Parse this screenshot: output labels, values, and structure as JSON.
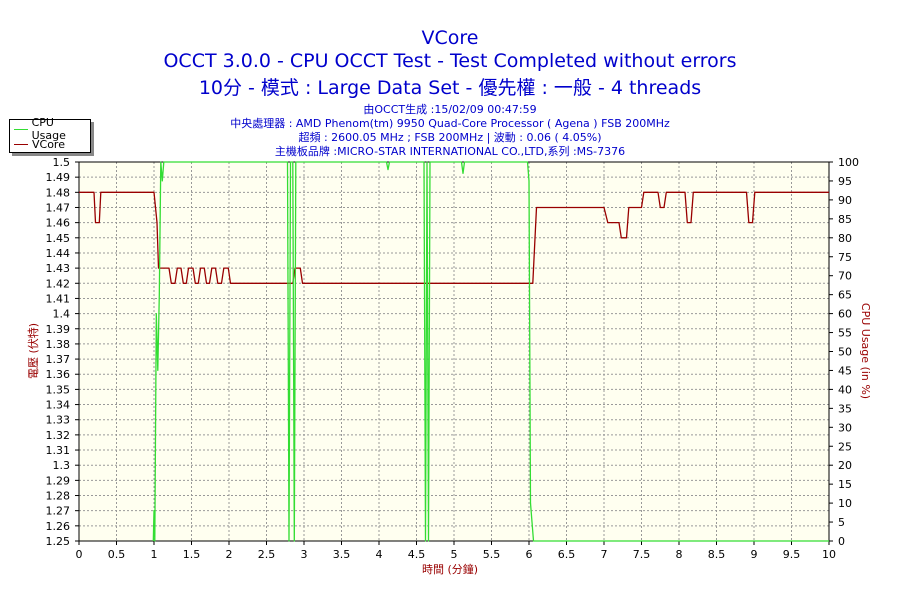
{
  "title_lines": [
    "VCore",
    "OCCT 3.0.0 - CPU OCCT Test - Test Completed without errors",
    "10分 - 模式 : Large Data Set - 優先權 : 一般 - 4 threads"
  ],
  "info_lines": [
    "由OCCT生成 :15/02/09 00:47:59",
    "中央處理器 : AMD Phenom(tm) 9950 Quad-Core Processor ( Agena ) FSB 200MHz",
    "超頻 : 2600.05 MHz ; FSB 200MHz | 波動 : 0.06 ( 4.05%)",
    "主機板品牌 :MICRO-STAR INTERNATIONAL CO.,LTD,系列 :MS-7376"
  ],
  "legend": [
    {
      "label": "CPU Usage",
      "color": "#33dd33"
    },
    {
      "label": "VCore",
      "color": "#990000"
    }
  ],
  "chart_data": {
    "type": "line",
    "xlabel": "時間 (分鐘)",
    "ylabel_left": "電壓 (伏特)",
    "ylabel_right": "CPU Usage (in %)",
    "xlim": [
      0,
      10
    ],
    "ylim_left": [
      1.25,
      1.5
    ],
    "ylim_right": [
      0,
      100
    ],
    "x_ticks": [
      "0",
      "0.5",
      "1",
      "1.5",
      "2",
      "2.5",
      "3",
      "3.5",
      "4",
      "4.5",
      "5",
      "5.5",
      "6",
      "6.5",
      "7",
      "7.5",
      "8",
      "8.5",
      "9",
      "9.5",
      "10"
    ],
    "y_left_ticks": [
      "1.25",
      "1.26",
      "1.27",
      "1.28",
      "1.29",
      "1.3",
      "1.31",
      "1.32",
      "1.33",
      "1.34",
      "1.35",
      "1.36",
      "1.37",
      "1.38",
      "1.39",
      "1.4",
      "1.41",
      "1.42",
      "1.43",
      "1.44",
      "1.45",
      "1.46",
      "1.47",
      "1.48",
      "1.49",
      "1.5"
    ],
    "y_right_ticks": [
      "0",
      "5",
      "10",
      "15",
      "20",
      "25",
      "30",
      "35",
      "40",
      "45",
      "50",
      "55",
      "60",
      "65",
      "70",
      "75",
      "80",
      "85",
      "90",
      "95",
      "100"
    ],
    "grid": true,
    "background": "#fffff0",
    "series": [
      {
        "name": "VCore",
        "axis": "left",
        "color": "#990000",
        "points": [
          [
            0,
            1.48
          ],
          [
            0.2,
            1.48
          ],
          [
            0.22,
            1.46
          ],
          [
            0.27,
            1.46
          ],
          [
            0.29,
            1.48
          ],
          [
            1.0,
            1.48
          ],
          [
            1.04,
            1.46
          ],
          [
            1.06,
            1.43
          ],
          [
            1.2,
            1.43
          ],
          [
            1.23,
            1.42
          ],
          [
            1.28,
            1.42
          ],
          [
            1.31,
            1.43
          ],
          [
            1.36,
            1.43
          ],
          [
            1.39,
            1.42
          ],
          [
            1.43,
            1.42
          ],
          [
            1.46,
            1.43
          ],
          [
            1.52,
            1.43
          ],
          [
            1.55,
            1.42
          ],
          [
            1.59,
            1.42
          ],
          [
            1.62,
            1.43
          ],
          [
            1.67,
            1.43
          ],
          [
            1.7,
            1.42
          ],
          [
            1.74,
            1.42
          ],
          [
            1.77,
            1.43
          ],
          [
            1.82,
            1.43
          ],
          [
            1.85,
            1.42
          ],
          [
            1.9,
            1.42
          ],
          [
            1.93,
            1.43
          ],
          [
            1.99,
            1.43
          ],
          [
            2.02,
            1.42
          ],
          [
            2.8,
            1.42
          ],
          [
            2.85,
            1.42
          ],
          [
            2.88,
            1.43
          ],
          [
            2.95,
            1.43
          ],
          [
            2.98,
            1.42
          ],
          [
            6.0,
            1.42
          ],
          [
            6.05,
            1.42
          ],
          [
            6.1,
            1.47
          ],
          [
            7.0,
            1.47
          ],
          [
            7.05,
            1.46
          ],
          [
            7.2,
            1.46
          ],
          [
            7.23,
            1.45
          ],
          [
            7.3,
            1.45
          ],
          [
            7.33,
            1.47
          ],
          [
            7.5,
            1.47
          ],
          [
            7.53,
            1.48
          ],
          [
            7.72,
            1.48
          ],
          [
            7.75,
            1.47
          ],
          [
            7.8,
            1.47
          ],
          [
            7.83,
            1.48
          ],
          [
            8.08,
            1.48
          ],
          [
            8.11,
            1.46
          ],
          [
            8.16,
            1.46
          ],
          [
            8.19,
            1.48
          ],
          [
            8.9,
            1.48
          ],
          [
            8.93,
            1.46
          ],
          [
            8.98,
            1.46
          ],
          [
            9.01,
            1.48
          ],
          [
            10,
            1.48
          ]
        ]
      },
      {
        "name": "CPU Usage",
        "axis": "right",
        "color": "#33dd33",
        "points": [
          [
            0.99,
            0
          ],
          [
            1.0,
            8
          ],
          [
            1.01,
            0
          ],
          [
            1.03,
            60
          ],
          [
            1.05,
            45
          ],
          [
            1.07,
            65
          ],
          [
            1.09,
            100
          ],
          [
            1.11,
            95
          ],
          [
            1.13,
            100
          ],
          [
            2.78,
            100
          ],
          [
            2.8,
            0
          ],
          [
            2.82,
            100
          ],
          [
            2.85,
            100
          ],
          [
            2.87,
            0
          ],
          [
            2.89,
            100
          ],
          [
            4.1,
            100
          ],
          [
            4.12,
            98
          ],
          [
            4.14,
            100
          ],
          [
            4.6,
            100
          ],
          [
            4.62,
            0
          ],
          [
            4.64,
            100
          ],
          [
            4.66,
            0
          ],
          [
            4.68,
            100
          ],
          [
            5.1,
            100
          ],
          [
            5.12,
            97
          ],
          [
            5.14,
            100
          ],
          [
            5.98,
            100
          ],
          [
            6.0,
            95
          ],
          [
            6.02,
            10
          ],
          [
            6.04,
            5
          ],
          [
            6.06,
            0
          ],
          [
            10,
            0
          ]
        ]
      }
    ]
  }
}
